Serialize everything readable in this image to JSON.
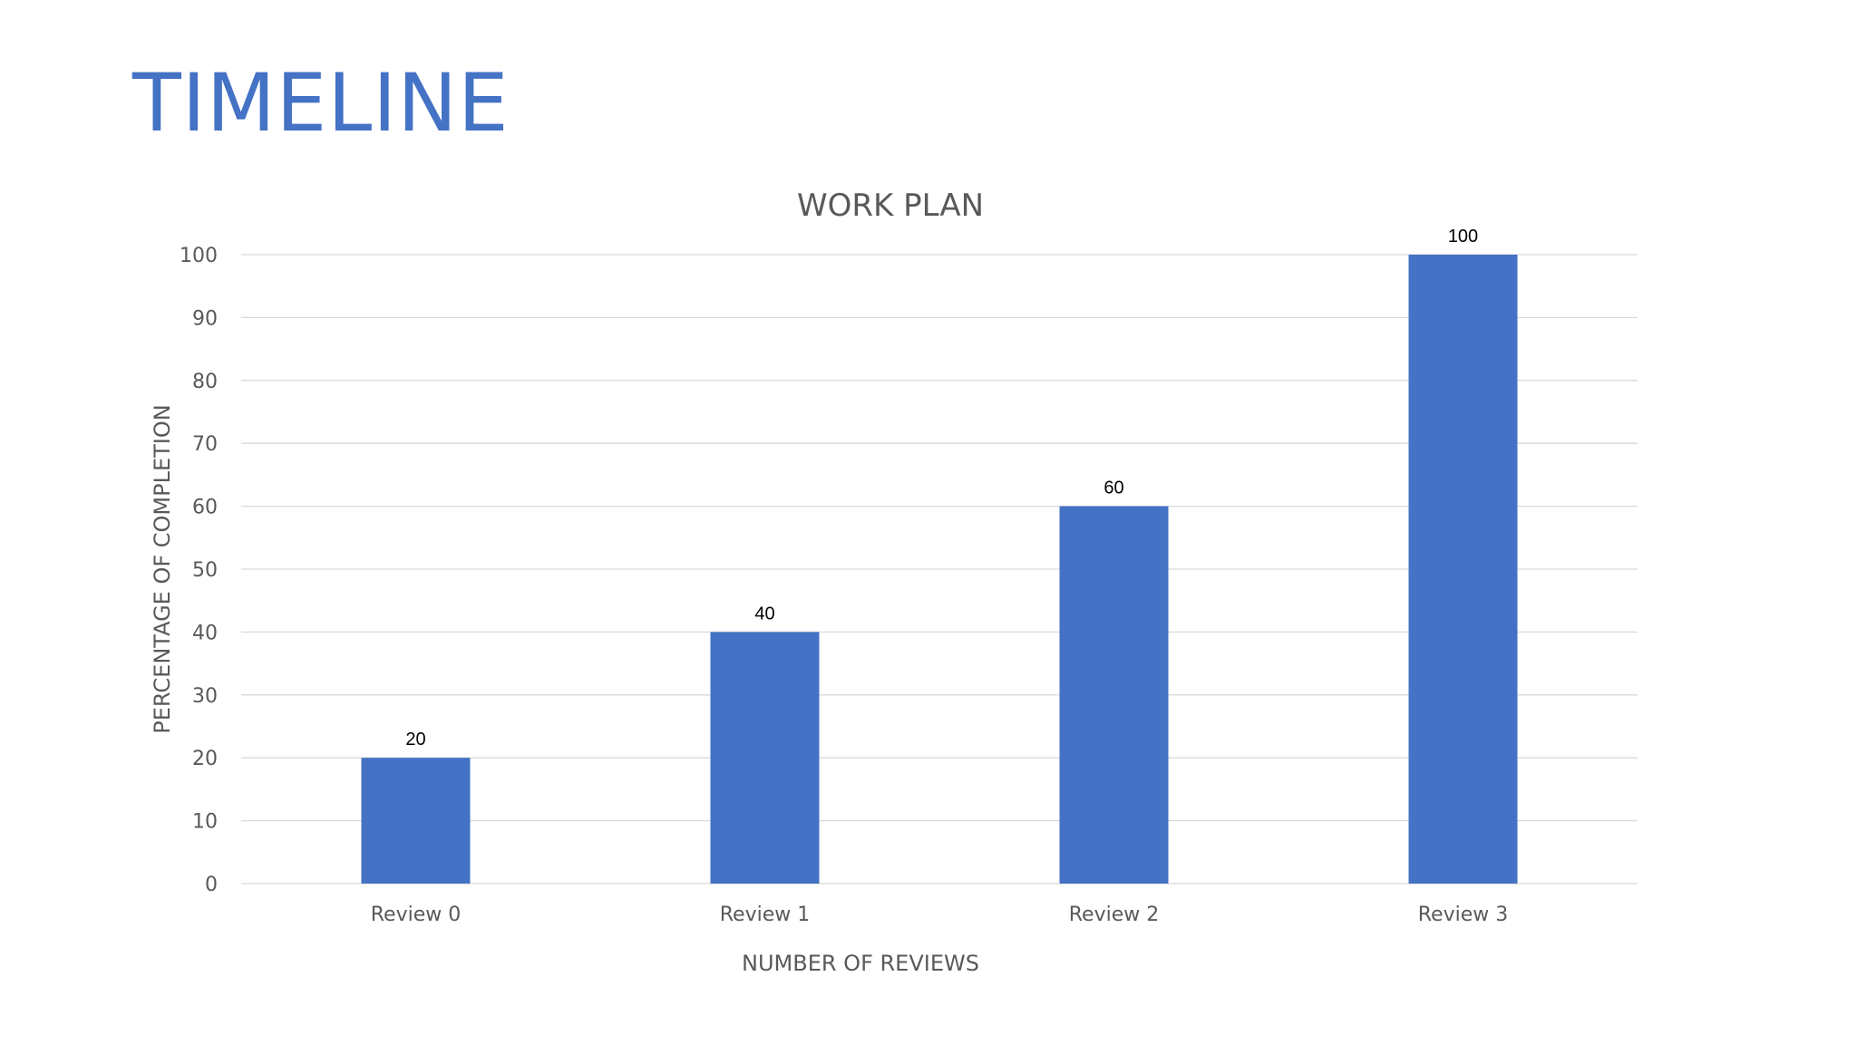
{
  "slide": {
    "title": "TIMELINE"
  },
  "chart_data": {
    "type": "bar",
    "title": "WORK PLAN",
    "xlabel": "NUMBER OF REVIEWS",
    "ylabel": "PERCENTAGE OF COMPLETION",
    "categories": [
      "Review 0",
      "Review 1",
      "Review 2",
      "Review 3"
    ],
    "values": [
      20,
      40,
      60,
      100
    ],
    "data_labels": [
      "20",
      "40",
      "60",
      "100"
    ],
    "ylim": [
      0,
      100
    ],
    "yticks": [
      0,
      10,
      20,
      30,
      40,
      50,
      60,
      70,
      80,
      90,
      100
    ],
    "grid": true,
    "legend": "none",
    "bar_color": "#4472c4"
  }
}
